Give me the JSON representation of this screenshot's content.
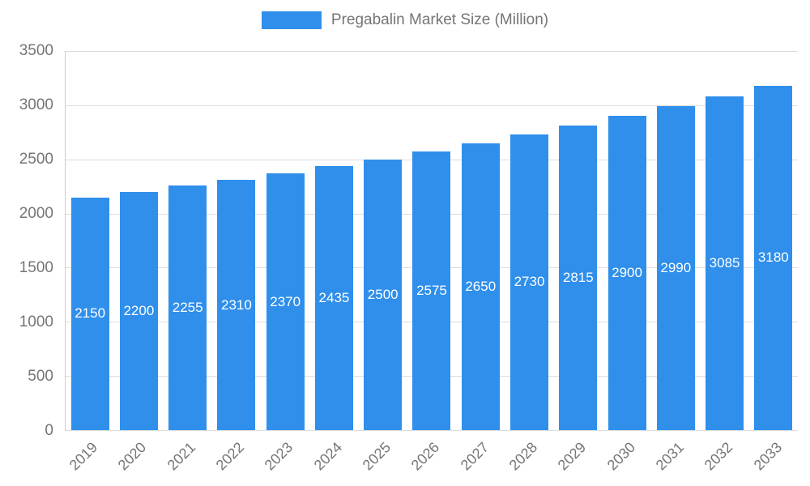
{
  "legend": {
    "label": "Pregabalin Market Size (Million)"
  },
  "colors": {
    "bar": "#2f8feb",
    "axis_text": "#757575",
    "grid": "#dddddd",
    "axis_line": "#cccccc",
    "value_label": "#ffffff"
  },
  "chart_data": {
    "type": "bar",
    "title": "Pregabalin Market Size (Million)",
    "categories": [
      "2019",
      "2020",
      "2021",
      "2022",
      "2023",
      "2024",
      "2025",
      "2026",
      "2027",
      "2028",
      "2029",
      "2030",
      "2031",
      "2032",
      "2033"
    ],
    "values": [
      2150,
      2200,
      2255,
      2310,
      2370,
      2435,
      2500,
      2575,
      2650,
      2730,
      2815,
      2900,
      2990,
      3085,
      3180
    ],
    "xlabel": "",
    "ylabel": "",
    "ylim": [
      0,
      3500
    ],
    "yticks": [
      0,
      500,
      1000,
      1500,
      2000,
      2500,
      3000,
      3500
    ],
    "grid": true,
    "legend_position": "top",
    "value_labels": "inside-center",
    "value_label_color": "#ffffff"
  }
}
